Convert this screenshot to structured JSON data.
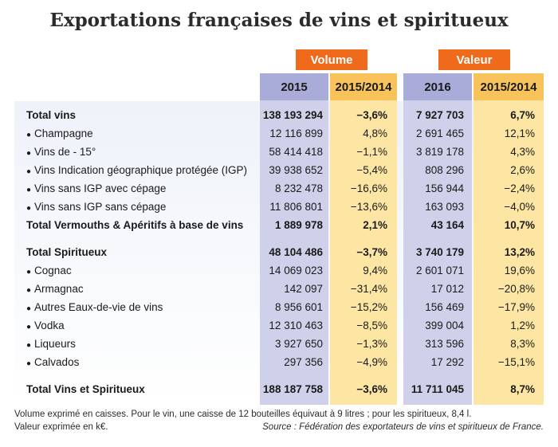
{
  "title": "Exportations françaises de vins et spiritueux",
  "groups": {
    "volume": "Volume",
    "valeur": "Valeur"
  },
  "columns": {
    "vol_year": "2015",
    "vol_change": "2015/2014",
    "val_year": "2016",
    "val_change": "2015/2014"
  },
  "rows": [
    {
      "label": "Total vins",
      "bullet": false,
      "bold": true,
      "v2015": "138 193 294",
      "vchg": "−3,6%",
      "w2016": "7 927 703",
      "wchg": "6,7%"
    },
    {
      "label": "Champagne",
      "bullet": true,
      "bold": false,
      "v2015": "12 116 899",
      "vchg": "4,8%",
      "w2016": "2 691 465",
      "wchg": "12,1%"
    },
    {
      "label": "Vins de - 15°",
      "bullet": true,
      "bold": false,
      "v2015": "58 414 418",
      "vchg": "−1,1%",
      "w2016": "3 819 178",
      "wchg": "4,3%"
    },
    {
      "label": "Vins Indication géographique protégée (IGP)",
      "bullet": true,
      "bold": false,
      "v2015": "39 938 652",
      "vchg": "−5,4%",
      "w2016": "808 296",
      "wchg": "2,6%"
    },
    {
      "label": "Vins sans IGP avec cépage",
      "bullet": true,
      "bold": false,
      "v2015": "8 232 478",
      "vchg": "−16,6%",
      "w2016": "156 944",
      "wchg": "−2,4%"
    },
    {
      "label": "Vins sans IGP sans cépage",
      "bullet": true,
      "bold": false,
      "v2015": "11 806 801",
      "vchg": "−13,6%",
      "w2016": "163 093",
      "wchg": "−4,0%"
    },
    {
      "label": "Total Vermouths & Apéritifs à base de vins",
      "bullet": false,
      "bold": true,
      "v2015": "1 889 978",
      "vchg": "2,1%",
      "w2016": "43 164",
      "wchg": "10,7%"
    },
    {
      "label": "Total Spiritueux",
      "bullet": false,
      "bold": true,
      "v2015": "48 104 486",
      "vchg": "−3,7%",
      "w2016": "3 740 179",
      "wchg": "13,2%"
    },
    {
      "label": "Cognac",
      "bullet": true,
      "bold": false,
      "v2015": "14 069 023",
      "vchg": "9,4%",
      "w2016": "2 601 071",
      "wchg": "19,6%"
    },
    {
      "label": "Armagnac",
      "bullet": true,
      "bold": false,
      "v2015": "142 097",
      "vchg": "−31,4%",
      "w2016": "17 012",
      "wchg": "−20,8%"
    },
    {
      "label": "Autres Eaux-de-vie de vins",
      "bullet": true,
      "bold": false,
      "v2015": "8 956 601",
      "vchg": "−15,2%",
      "w2016": "156 469",
      "wchg": "−17,9%"
    },
    {
      "label": "Vodka",
      "bullet": true,
      "bold": false,
      "v2015": "12 310 463",
      "vchg": "−8,5%",
      "w2016": "399 004",
      "wchg": "1,2%"
    },
    {
      "label": "Liqueurs",
      "bullet": true,
      "bold": false,
      "v2015": "3 927 650",
      "vchg": "−1,3%",
      "w2016": "313 596",
      "wchg": "8,3%"
    },
    {
      "label": "Calvados",
      "bullet": true,
      "bold": false,
      "v2015": "297 356",
      "vchg": "−4,9%",
      "w2016": "17 292",
      "wchg": "−15,1%"
    },
    {
      "label": "Total Vins et Spiritueux",
      "bullet": false,
      "bold": true,
      "v2015": "188 187 758",
      "vchg": "−3,6%",
      "w2016": "11 711 045",
      "wchg": "8,7%"
    }
  ],
  "footer": {
    "line1": "Volume exprimé en caisses.  Pour le vin, une caisse de 12 bouteilles équivaut à 9 litres ; pour les spiritueux, 8,4 l.",
    "line2": "Valeur exprimée en k€.",
    "source": "Source : Fédération des exportateurs de vins et spiritueux de France."
  }
}
